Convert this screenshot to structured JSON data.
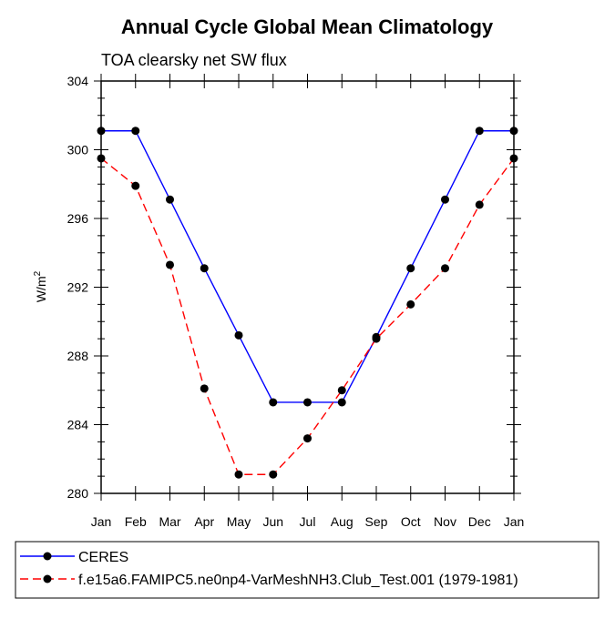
{
  "chart_data": {
    "type": "line",
    "title": "Annual Cycle Global Mean Climatology",
    "subtitle": "TOA clearsky net SW flux",
    "ylabel": "W/m",
    "ylabel_superscript": "2",
    "categories": [
      "Jan",
      "Feb",
      "Mar",
      "Apr",
      "May",
      "Jun",
      "Jul",
      "Aug",
      "Sep",
      "Oct",
      "Nov",
      "Dec",
      "Jan"
    ],
    "yticks": [
      "280",
      "284",
      "288",
      "292",
      "296",
      "300",
      "304"
    ],
    "ylim": [
      280,
      304
    ],
    "series": [
      {
        "name": "CERES",
        "color": "#0000ff",
        "dash": "solid",
        "marker": "circle",
        "values": [
          301.1,
          301.1,
          297.1,
          293.1,
          289.2,
          285.3,
          285.3,
          285.3,
          289.1,
          293.1,
          297.1,
          301.1,
          301.1
        ]
      },
      {
        "name": "f.e15a6.FAMIPC5.ne0np4-VarMeshNH3.Club_Test.001 (1979-1981)",
        "color": "#ff0000",
        "dash": "dashed",
        "marker": "circle",
        "values": [
          299.5,
          297.9,
          293.3,
          286.1,
          281.1,
          281.1,
          283.2,
          286.0,
          289.0,
          291.0,
          293.1,
          296.8,
          299.5
        ]
      }
    ],
    "legend_position": "bottom-left",
    "grid": false
  }
}
